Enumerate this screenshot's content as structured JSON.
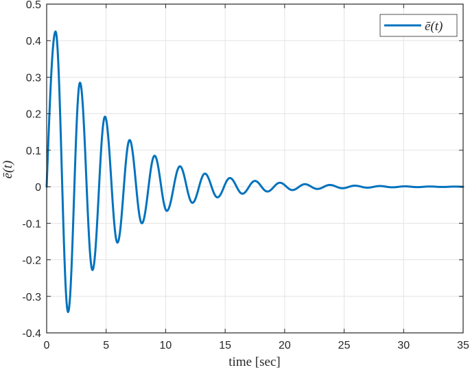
{
  "chart_data": {
    "type": "line",
    "title": "",
    "xlabel": "time [sec]",
    "ylabel": "ē(t)",
    "xlim": [
      0,
      35
    ],
    "ylim": [
      -0.4,
      0.5
    ],
    "xticks": [
      0,
      5,
      10,
      15,
      20,
      25,
      30,
      35
    ],
    "xtick_labels": [
      "0",
      "5",
      "10",
      "15",
      "20",
      "25",
      "30",
      "35"
    ],
    "yticks": [
      -0.4,
      -0.3,
      -0.2,
      -0.1,
      0,
      0.1,
      0.2,
      0.3,
      0.4,
      0.5
    ],
    "ytick_labels": [
      "-0.4",
      "-0.3",
      "-0.2",
      "-0.1",
      "0",
      "0.1",
      "0.2",
      "0.3",
      "0.4",
      "0.5"
    ],
    "grid": true,
    "legend": {
      "position": "upper right",
      "entries": [
        "ē(t)"
      ]
    },
    "series": [
      {
        "name": "ē(t)",
        "color": "#0072BD",
        "description": "damped oscillation, extrema and endpoints",
        "x": [
          0,
          0.75,
          1.8,
          2.8,
          3.85,
          4.9,
          5.95,
          6.97,
          8.0,
          9.07,
          10.1,
          11.2,
          12.25,
          13.3,
          14.35,
          15.4,
          16.45,
          17.5,
          18.55,
          19.6,
          20.65,
          21.7,
          22.75,
          23.8,
          24.85,
          25.9,
          26.95,
          28.0,
          29.05,
          30.1,
          31.15,
          32.2,
          33.25,
          34.3,
          35.0
        ],
        "y": [
          0,
          0.425,
          -0.343,
          0.285,
          -0.228,
          0.192,
          -0.153,
          0.128,
          -0.1,
          0.085,
          -0.066,
          0.056,
          -0.044,
          0.036,
          -0.029,
          0.024,
          -0.019,
          0.016,
          -0.013,
          0.011,
          -0.009,
          0.007,
          -0.006,
          0.005,
          -0.004,
          0.003,
          -0.0025,
          0.002,
          -0.0015,
          0.0012,
          -0.001,
          0.0008,
          -0.0006,
          0.0005,
          0.0
        ]
      }
    ]
  },
  "legend": {
    "label": "ē(t)"
  },
  "axes": {
    "xlabel": "time [sec]",
    "ylabel": "ē(t)"
  }
}
